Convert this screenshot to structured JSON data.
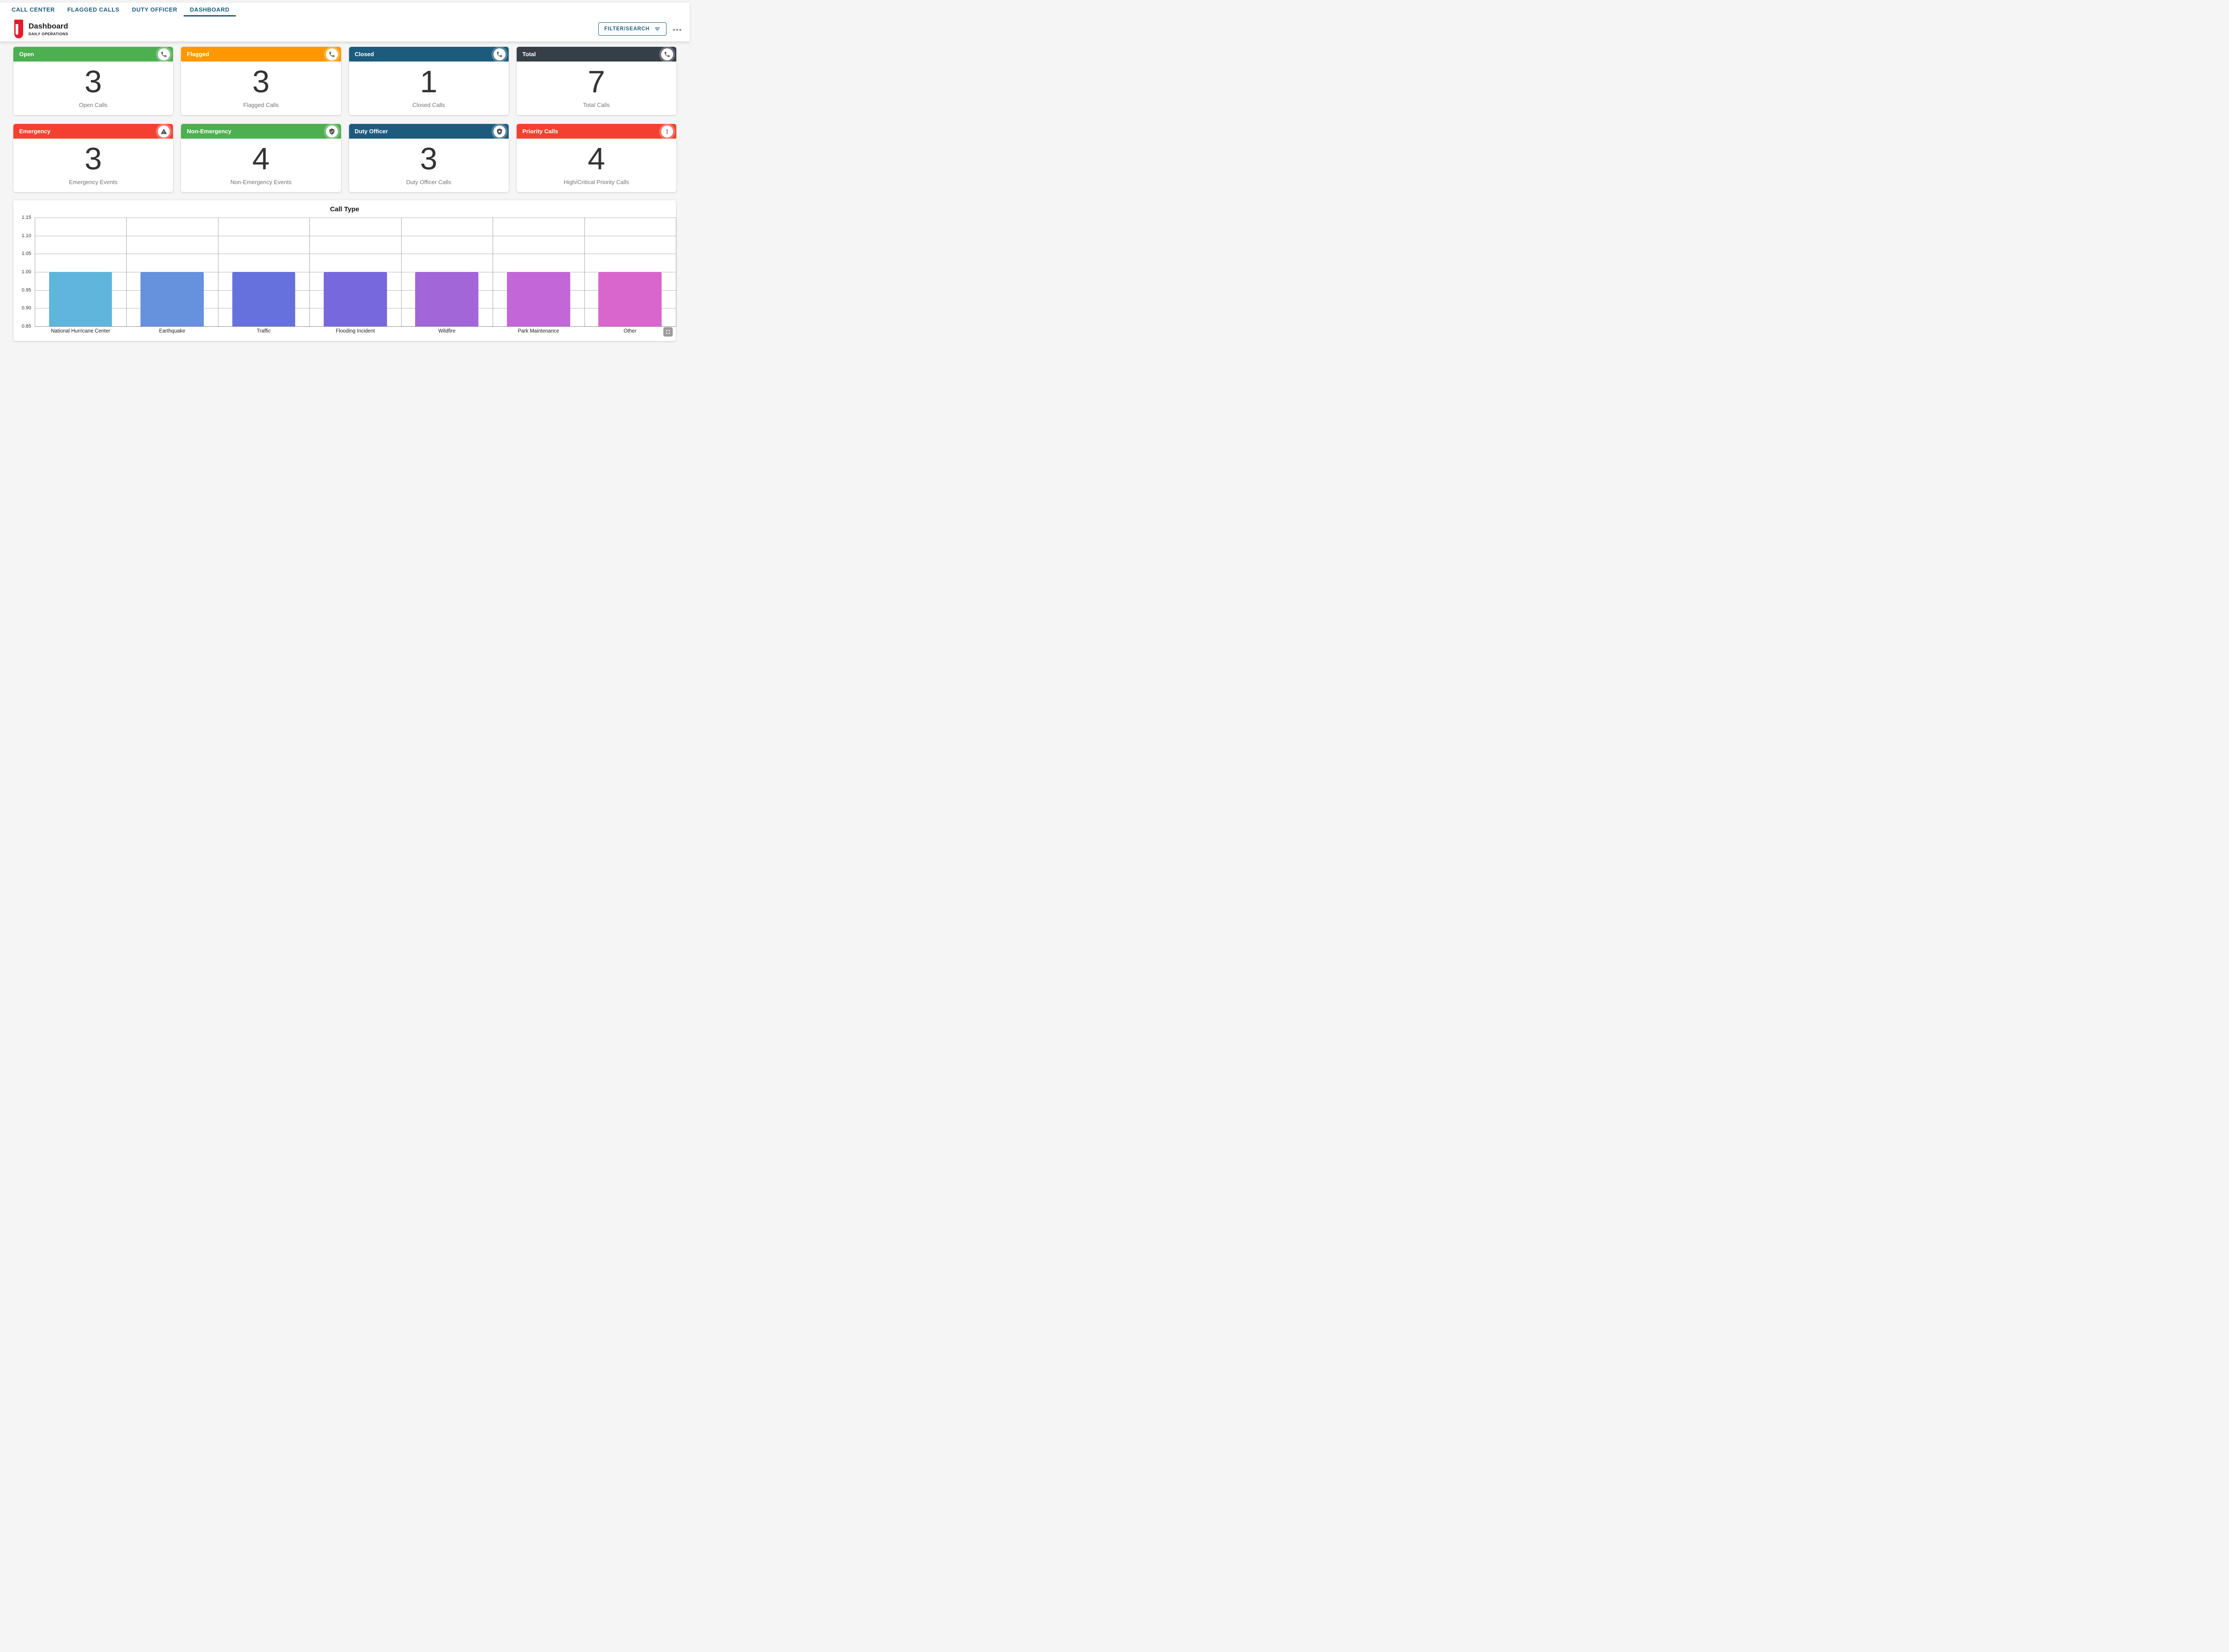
{
  "tabs": {
    "accent_color": "#1d5b7c",
    "active_index": 3,
    "items": [
      {
        "label": "CALL CENTER"
      },
      {
        "label": "FLAGGED CALLS"
      },
      {
        "label": "DUTY OFFICER"
      },
      {
        "label": "DASHBOARD"
      }
    ]
  },
  "header": {
    "title": "Dashboard",
    "subtitle": "DAILY OPERATIONS",
    "logo_color": "#e8192c",
    "filter_button_label": "FILTER/SEARCH",
    "filter_icon": "filter-icon",
    "more_menu_icon": "ellipsis-icon"
  },
  "stat_cards": [
    {
      "title": "Open",
      "value": 3,
      "label": "Open Calls",
      "color": "#4caf50",
      "icon": "phone-icon"
    },
    {
      "title": "Flagged",
      "value": 3,
      "label": "Flagged Calls",
      "color": "#ff9800",
      "icon": "phone-icon"
    },
    {
      "title": "Closed",
      "value": 1,
      "label": "Closed Calls",
      "color": "#1d5b7c",
      "icon": "phone-icon"
    },
    {
      "title": "Total",
      "value": 7,
      "label": "Total Calls",
      "color": "#363f48",
      "icon": "phone-icon"
    },
    {
      "title": "Emergency",
      "value": 3,
      "label": "Emergency Events",
      "color": "#f4402f",
      "icon": "warning-triangle-icon"
    },
    {
      "title": "Non-Emergency",
      "value": 4,
      "label": "Non-Emergency Events",
      "color": "#4caf50",
      "icon": "shield-check-icon"
    },
    {
      "title": "Duty Officer",
      "value": 3,
      "label": "Duty Officer Calls",
      "color": "#1d5b7c",
      "icon": "shield-star-icon"
    },
    {
      "title": "Priority Calls",
      "value": 4,
      "label": "High/Critical Priority Calls",
      "color": "#f4402f",
      "icon": "exclamation-icon"
    }
  ],
  "chart_card": {
    "fullscreen_icon": "fullscreen-icon"
  },
  "chart_data": {
    "type": "bar",
    "title": "Call Type",
    "categories": [
      "National Hurricane Center",
      "Earthquake",
      "Traffic",
      "Flooding Incident",
      "Wildfire",
      "Park Maintenance",
      "Other"
    ],
    "values": [
      1.0,
      1.0,
      1.0,
      1.0,
      1.0,
      1.0,
      1.0
    ],
    "bar_colors": [
      "#60b5dc",
      "#6691dc",
      "#6671dd",
      "#7769dd",
      "#a266d9",
      "#c266d8",
      "#d966cd"
    ],
    "xlabel": "",
    "ylabel": "",
    "ylim": [
      0.85,
      1.15
    ],
    "yticks": [
      1.15,
      1.1,
      1.05,
      1.0,
      0.95,
      0.9,
      0.85
    ],
    "grid": true,
    "legend": false,
    "bar_width_fraction": 0.69
  }
}
